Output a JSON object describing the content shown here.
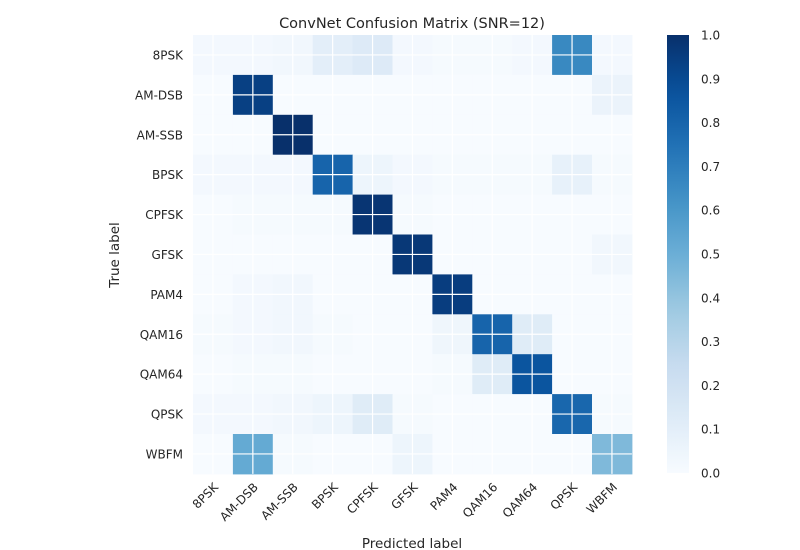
{
  "chart_data": {
    "type": "heatmap",
    "title": "ConvNet Confusion Matrix (SNR=12)",
    "xlabel": "Predicted label",
    "ylabel": "True label",
    "x_categories": [
      "8PSK",
      "AM-DSB",
      "AM-SSB",
      "BPSK",
      "CPFSK",
      "GFSK",
      "PAM4",
      "QAM16",
      "QAM64",
      "QPSK",
      "WBFM"
    ],
    "y_categories": [
      "8PSK",
      "AM-DSB",
      "AM-SSB",
      "BPSK",
      "CPFSK",
      "GFSK",
      "PAM4",
      "QAM16",
      "QAM64",
      "QPSK",
      "WBFM"
    ],
    "values": [
      [
        0.02,
        0.02,
        0.03,
        0.1,
        0.13,
        0.02,
        0.01,
        0.01,
        0.02,
        0.66,
        0.02
      ],
      [
        0.0,
        0.94,
        0.0,
        0.0,
        0.0,
        0.0,
        0.0,
        0.0,
        0.0,
        0.0,
        0.06
      ],
      [
        0.0,
        0.0,
        1.0,
        0.0,
        0.0,
        0.0,
        0.0,
        0.0,
        0.0,
        0.0,
        0.0
      ],
      [
        0.02,
        0.02,
        0.02,
        0.8,
        0.05,
        0.02,
        0.01,
        0.01,
        0.01,
        0.08,
        0.01
      ],
      [
        0.0,
        0.01,
        0.01,
        0.01,
        0.98,
        0.01,
        0.0,
        0.0,
        0.0,
        0.0,
        0.0
      ],
      [
        0.0,
        0.0,
        0.0,
        0.0,
        0.0,
        0.97,
        0.0,
        0.0,
        0.0,
        0.0,
        0.03
      ],
      [
        0.0,
        0.02,
        0.03,
        0.0,
        0.0,
        0.0,
        0.95,
        0.0,
        0.0,
        0.0,
        0.0
      ],
      [
        0.01,
        0.02,
        0.03,
        0.01,
        0.0,
        0.0,
        0.04,
        0.8,
        0.12,
        0.0,
        0.0
      ],
      [
        0.0,
        0.01,
        0.01,
        0.0,
        0.0,
        0.0,
        0.01,
        0.12,
        0.86,
        0.0,
        0.0
      ],
      [
        0.02,
        0.02,
        0.03,
        0.05,
        0.12,
        0.01,
        0.0,
        0.0,
        0.0,
        0.79,
        0.01
      ],
      [
        0.0,
        0.52,
        0.01,
        0.0,
        0.0,
        0.05,
        0.0,
        0.0,
        0.0,
        0.0,
        0.45
      ]
    ],
    "colorbar": {
      "min": 0.0,
      "max": 1.0,
      "ticks": [
        "0.0",
        "0.1",
        "0.2",
        "0.3",
        "0.4",
        "0.5",
        "0.6",
        "0.7",
        "0.8",
        "0.9",
        "1.0"
      ]
    },
    "colormap": "Blues",
    "grid": true
  }
}
